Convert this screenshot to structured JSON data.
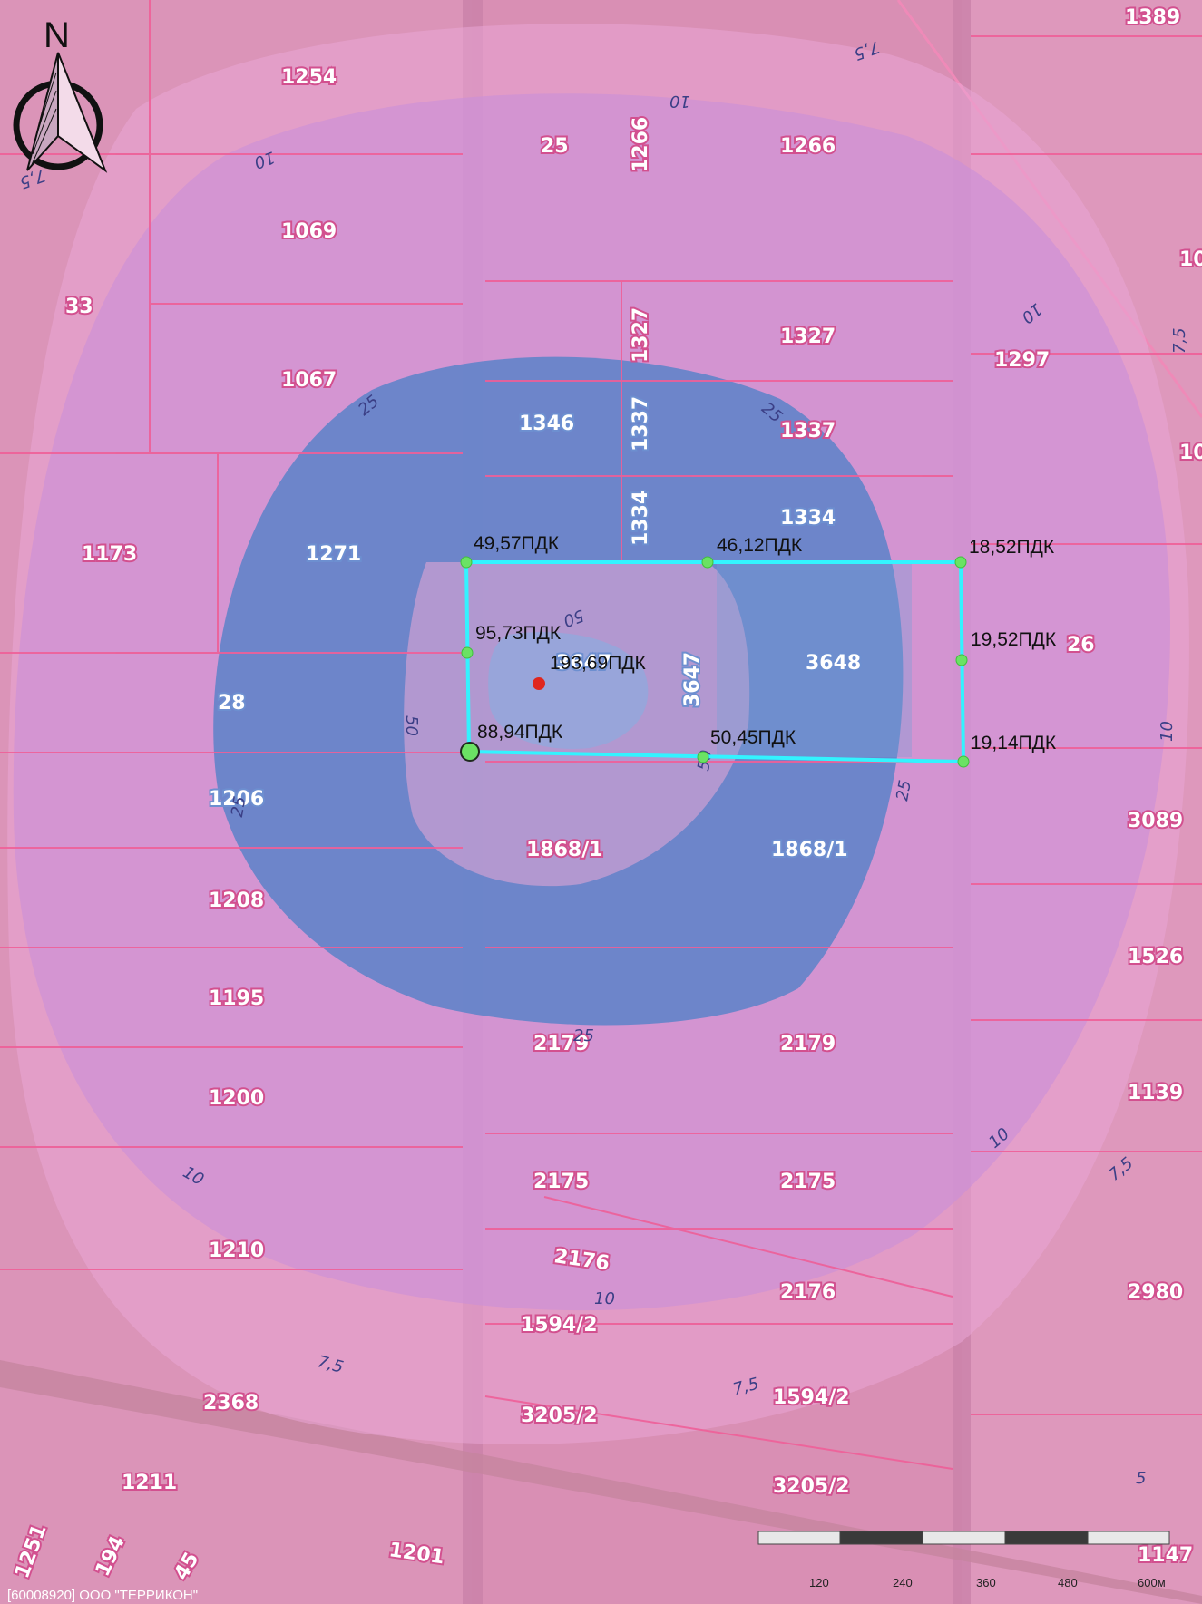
{
  "north_label": "N",
  "colors": {
    "background": "#d98fb4",
    "zone_outer": "#d07ac8",
    "zone_blue": "#5b83c9",
    "zone_inner": "#b99ad0",
    "site_outline": "#33f3ff",
    "parcel_lines": "#ee5f98",
    "source_point": "#e0261e"
  },
  "parcels": [
    "1254",
    "1389",
    "25",
    "1266",
    "1266",
    "1069",
    "33",
    "1327",
    "1327",
    "1297",
    "1067",
    "1346",
    "1337",
    "1337",
    "1334",
    "1334",
    "1173",
    "1271",
    "3648",
    "3647",
    "3647",
    "26",
    "28",
    "1206",
    "1868/1",
    "1868/1",
    "3089",
    "1208",
    "1526",
    "1195",
    "2179",
    "2179",
    "1200",
    "1139",
    "2175",
    "2175",
    "1210",
    "2176",
    "2176",
    "2980",
    "1594/2",
    "1594/2",
    "2368",
    "3205/2",
    "3205/2",
    "1211",
    "1201",
    "1251",
    "194",
    "45",
    "1147",
    "10",
    "10"
  ],
  "isolines": [
    "7,5",
    "10",
    "10",
    "7,5",
    "10",
    "7,5",
    "25",
    "25",
    "25",
    "25",
    "50",
    "50",
    "50",
    "10",
    "25",
    "10",
    "7,5",
    "10",
    "7,5",
    "7,5",
    "5",
    "10"
  ],
  "measurements": [
    "49,57ПДК",
    "46,12ПДК",
    "18,52ПДК",
    "95,73ПДК",
    "193,69ПДК",
    "19,52ПДК",
    "88,94ПДК",
    "50,45ПДК",
    "19,14ПДК"
  ],
  "scale": {
    "labels": [
      "120",
      "240",
      "360",
      "480",
      "600м"
    ]
  },
  "footer": "[60008920] ООО \"ТЕРРИКОН\""
}
